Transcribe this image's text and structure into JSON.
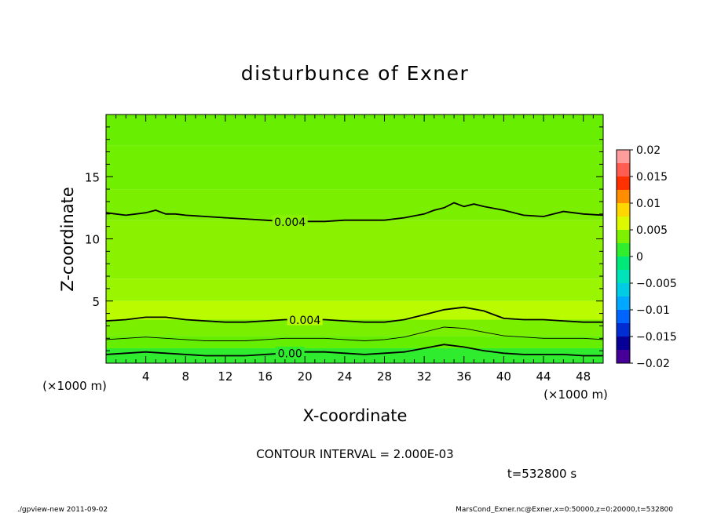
{
  "chart_data": {
    "type": "heatmap",
    "title": "disturbunce of Exner",
    "xlabel": "X-coordinate",
    "ylabel": "Z-coordinate",
    "x_unit": "(×1000 m)",
    "y_unit": "(×1000 m)",
    "xlim": [
      0,
      50
    ],
    "ylim": [
      0,
      20
    ],
    "x_ticks": [
      4,
      8,
      12,
      16,
      20,
      24,
      28,
      32,
      36,
      40,
      44,
      48
    ],
    "y_ticks": [
      5,
      10,
      15
    ],
    "colorbar": {
      "ticks": [
        0.02,
        0.015,
        0.01,
        0.005,
        0,
        -0.005,
        -0.01,
        -0.015,
        -0.02
      ],
      "tick_labels": [
        "0.02",
        "0.015",
        "0.01",
        "0.005",
        "0",
        "−0.005",
        "−0.01",
        "−0.015",
        "−0.02"
      ],
      "range": [
        -0.02,
        0.02
      ],
      "levels": 16
    },
    "field_bands": [
      {
        "z_bottom": 17.5,
        "z_top": 20,
        "value": 0.0027
      },
      {
        "z_bottom": 14,
        "z_top": 17.5,
        "value": 0.0031
      },
      {
        "z_bottom": 11.5,
        "z_top": 14,
        "value": 0.0036
      },
      {
        "z_bottom": 6.8,
        "z_top": 11.5,
        "value": 0.0044
      },
      {
        "z_bottom": 5,
        "z_top": 6.8,
        "value": 0.0047
      },
      {
        "z_bottom": 3.5,
        "z_top": 5,
        "value": 0.0052
      },
      {
        "z_bottom": 2.2,
        "z_top": 3.5,
        "value": 0.0036
      },
      {
        "z_bottom": 1.2,
        "z_top": 2.2,
        "value": 0.0026
      },
      {
        "z_bottom": 0,
        "z_top": 1.2,
        "value": 0.0012
      }
    ],
    "contours": [
      {
        "level": 0.004,
        "label": "0.004",
        "label_x": 18.5,
        "weight": "bold",
        "x": [
          0,
          1,
          2,
          3,
          4,
          5,
          6,
          7,
          8,
          10,
          12,
          14,
          16,
          18,
          20,
          22,
          24,
          26,
          28,
          30,
          32,
          33,
          34,
          35,
          36,
          37,
          38,
          40,
          42,
          44,
          46,
          48,
          50
        ],
        "z": [
          12.1,
          12.0,
          11.9,
          12.0,
          12.1,
          12.3,
          12.0,
          12.0,
          11.9,
          11.8,
          11.7,
          11.6,
          11.5,
          11.4,
          11.4,
          11.4,
          11.5,
          11.5,
          11.5,
          11.7,
          12.0,
          12.3,
          12.5,
          12.9,
          12.6,
          12.8,
          12.6,
          12.3,
          11.9,
          11.8,
          12.2,
          12.0,
          11.9
        ]
      },
      {
        "level": 0.004,
        "label": "0.004",
        "label_x": 20,
        "weight": "bold",
        "x": [
          0,
          2,
          4,
          6,
          8,
          10,
          12,
          14,
          16,
          18,
          20,
          22,
          24,
          26,
          28,
          30,
          32,
          34,
          36,
          38,
          40,
          42,
          44,
          46,
          48,
          50
        ],
        "z": [
          3.4,
          3.5,
          3.7,
          3.7,
          3.5,
          3.4,
          3.3,
          3.3,
          3.4,
          3.5,
          3.5,
          3.5,
          3.4,
          3.3,
          3.3,
          3.5,
          3.9,
          4.3,
          4.5,
          4.2,
          3.6,
          3.5,
          3.5,
          3.4,
          3.3,
          3.3
        ]
      },
      {
        "level": 0.002,
        "label": "",
        "label_x": 0,
        "weight": "thin",
        "x": [
          0,
          2,
          4,
          6,
          8,
          10,
          12,
          14,
          16,
          18,
          20,
          22,
          24,
          26,
          28,
          30,
          32,
          34,
          36,
          38,
          40,
          42,
          44,
          46,
          48,
          50
        ],
        "z": [
          1.9,
          2.0,
          2.1,
          2.0,
          1.9,
          1.8,
          1.8,
          1.8,
          1.9,
          2.0,
          2.0,
          2.0,
          1.9,
          1.8,
          1.9,
          2.1,
          2.5,
          2.9,
          2.8,
          2.5,
          2.2,
          2.1,
          2.0,
          2.0,
          2.0,
          1.9
        ]
      },
      {
        "level": 0.0,
        "label": "0.00",
        "label_x": 18.5,
        "weight": "bold",
        "x": [
          0,
          2,
          4,
          6,
          8,
          10,
          12,
          14,
          16,
          18,
          20,
          22,
          24,
          26,
          28,
          30,
          32,
          34,
          36,
          38,
          40,
          42,
          44,
          46,
          48,
          50
        ],
        "z": [
          0.7,
          0.8,
          0.9,
          0.8,
          0.7,
          0.6,
          0.6,
          0.6,
          0.7,
          0.8,
          0.9,
          0.9,
          0.8,
          0.7,
          0.8,
          0.9,
          1.2,
          1.5,
          1.3,
          1.0,
          0.8,
          0.7,
          0.7,
          0.7,
          0.6,
          0.6
        ]
      }
    ]
  },
  "annotations": {
    "contour_interval": "CONTOUR INTERVAL = 2.000E-03",
    "time": "t=532800 s",
    "footer_left": "./gpview-new  2011-09-02",
    "footer_right": "MarsCond_Exner.nc@Exner,x=0:50000,z=0:20000,t=532800"
  }
}
